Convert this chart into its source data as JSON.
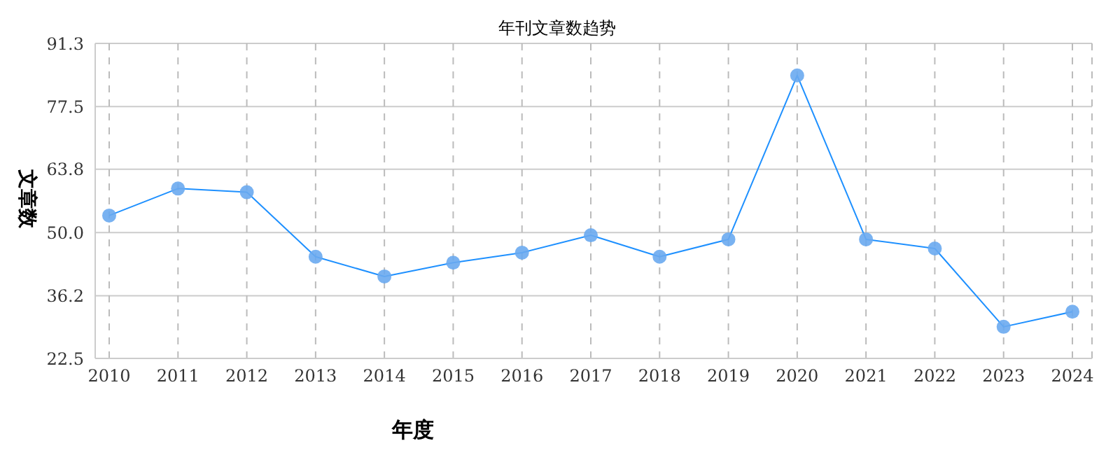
{
  "chart_data": {
    "type": "line",
    "title": "年刊文章数趋势",
    "xlabel": "年度",
    "ylabel": "文章数",
    "categories": [
      "2010",
      "2011",
      "2012",
      "2013",
      "2014",
      "2015",
      "2016",
      "2017",
      "2018",
      "2019",
      "2020",
      "2021",
      "2022",
      "2023",
      "2024"
    ],
    "series": [
      {
        "color": "#1e90ff",
        "values": [
          53.7,
          59.6,
          58.8,
          44.7,
          40.4,
          43.4,
          45.6,
          49.4,
          44.7,
          48.5,
          84.3,
          48.5,
          46.5,
          29.4,
          32.7
        ]
      }
    ],
    "ylim": [
      22.5,
      91.3
    ],
    "yticks": [
      22.5,
      36.2,
      {
        "value": 50,
        "label": "50.0"
      },
      63.8,
      77.5,
      91.3
    ],
    "grid": true,
    "marker": "circle",
    "line_style": "solid",
    "legend": false
  }
}
